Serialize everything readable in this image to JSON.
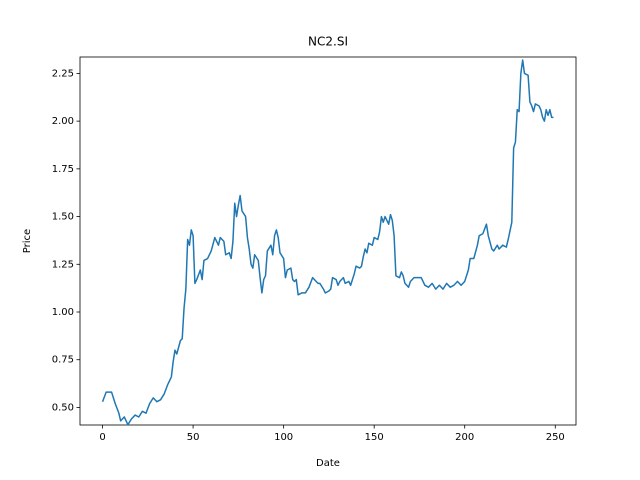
{
  "chart_data": {
    "type": "line",
    "title": "NC2.SI",
    "x_label": "Date",
    "y_label": "Price",
    "color": "#1f77b4",
    "x": [
      0,
      2,
      5,
      7,
      9,
      10,
      12,
      14,
      16,
      18,
      20,
      22,
      24,
      26,
      28,
      30,
      32,
      34,
      36,
      38,
      39,
      40,
      41,
      43,
      44,
      45,
      46,
      47,
      48,
      49,
      50,
      51,
      52,
      54,
      55,
      56,
      58,
      60,
      62,
      64,
      65,
      67,
      68,
      70,
      71,
      72,
      73,
      74,
      75,
      76,
      77,
      79,
      80,
      81,
      82,
      83,
      84,
      86,
      87,
      88,
      89,
      90,
      91,
      93,
      94,
      95,
      96,
      97,
      98,
      100,
      101,
      102,
      104,
      105,
      106,
      107,
      108,
      110,
      112,
      114,
      116,
      118,
      119,
      120,
      122,
      123,
      125,
      126,
      127,
      129,
      130,
      131,
      133,
      134,
      136,
      137,
      139,
      140,
      142,
      143,
      144,
      145,
      146,
      147,
      149,
      150,
      152,
      153,
      154,
      155,
      156,
      158,
      159,
      160,
      161,
      162,
      164,
      165,
      166,
      167,
      169,
      170,
      172,
      174,
      176,
      178,
      180,
      182,
      184,
      186,
      188,
      190,
      192,
      194,
      196,
      198,
      200,
      202,
      203,
      205,
      207,
      208,
      210,
      212,
      213,
      215,
      216,
      218,
      219,
      221,
      223,
      224,
      226,
      227,
      228,
      229,
      230,
      231,
      232,
      233,
      235,
      236,
      237,
      238,
      239,
      241,
      242,
      243,
      244,
      245,
      246,
      247,
      248,
      249
    ],
    "values": [
      0.53,
      0.58,
      0.58,
      0.52,
      0.47,
      0.43,
      0.45,
      0.41,
      0.44,
      0.46,
      0.45,
      0.48,
      0.47,
      0.52,
      0.55,
      0.53,
      0.54,
      0.57,
      0.62,
      0.66,
      0.74,
      0.8,
      0.78,
      0.85,
      0.86,
      1.02,
      1.12,
      1.38,
      1.35,
      1.43,
      1.4,
      1.15,
      1.17,
      1.22,
      1.17,
      1.27,
      1.28,
      1.32,
      1.39,
      1.35,
      1.39,
      1.37,
      1.3,
      1.31,
      1.28,
      1.37,
      1.57,
      1.5,
      1.56,
      1.61,
      1.53,
      1.5,
      1.39,
      1.33,
      1.25,
      1.23,
      1.3,
      1.27,
      1.18,
      1.1,
      1.17,
      1.19,
      1.32,
      1.35,
      1.3,
      1.4,
      1.43,
      1.39,
      1.31,
      1.28,
      1.18,
      1.22,
      1.23,
      1.17,
      1.16,
      1.17,
      1.09,
      1.1,
      1.1,
      1.13,
      1.18,
      1.16,
      1.15,
      1.15,
      1.12,
      1.1,
      1.11,
      1.12,
      1.18,
      1.17,
      1.14,
      1.16,
      1.18,
      1.15,
      1.16,
      1.14,
      1.2,
      1.24,
      1.23,
      1.24,
      1.29,
      1.33,
      1.31,
      1.36,
      1.35,
      1.39,
      1.38,
      1.42,
      1.5,
      1.47,
      1.5,
      1.46,
      1.51,
      1.48,
      1.4,
      1.19,
      1.18,
      1.21,
      1.19,
      1.15,
      1.13,
      1.16,
      1.18,
      1.18,
      1.18,
      1.14,
      1.13,
      1.15,
      1.12,
      1.14,
      1.12,
      1.15,
      1.13,
      1.14,
      1.16,
      1.14,
      1.16,
      1.22,
      1.28,
      1.28,
      1.35,
      1.4,
      1.41,
      1.46,
      1.4,
      1.33,
      1.32,
      1.35,
      1.33,
      1.35,
      1.34,
      1.38,
      1.47,
      1.86,
      1.89,
      2.06,
      2.05,
      2.25,
      2.32,
      2.25,
      2.24,
      2.1,
      2.08,
      2.05,
      2.09,
      2.08,
      2.06,
      2.02,
      2.0,
      2.06,
      2.03,
      2.06,
      2.02,
      2.02
    ],
    "xlim": [
      -12.45,
      261.45
    ],
    "ylim": [
      0.408,
      2.336
    ],
    "xticks": [
      0,
      50,
      100,
      150,
      200,
      250
    ],
    "yticks": [
      {
        "value": 0.5,
        "label": "0.50"
      },
      {
        "value": 0.75,
        "label": "0.75"
      },
      {
        "value": 1.0,
        "label": "1.00"
      },
      {
        "value": 1.25,
        "label": "1.25"
      },
      {
        "value": 1.5,
        "label": "1.50"
      },
      {
        "value": 1.75,
        "label": "1.75"
      },
      {
        "value": 2.0,
        "label": "2.00"
      },
      {
        "value": 2.25,
        "label": "2.25"
      }
    ]
  }
}
